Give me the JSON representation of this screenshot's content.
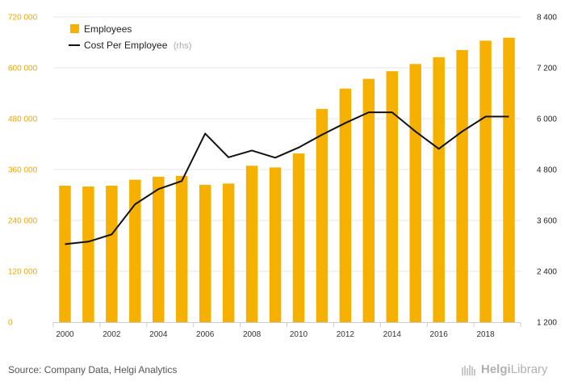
{
  "chart_data": {
    "type": "bar+line",
    "categories": [
      "2000",
      "2001",
      "2002",
      "2003",
      "2004",
      "2005",
      "2006",
      "2007",
      "2008",
      "2009",
      "2010",
      "2011",
      "2012",
      "2013",
      "2014",
      "2015",
      "2016",
      "2017",
      "2018",
      "2019"
    ],
    "x_tick_labels": [
      "2000",
      "2002",
      "2004",
      "2006",
      "2008",
      "2010",
      "2012",
      "2014",
      "2016",
      "2018"
    ],
    "series": [
      {
        "name": "Employees",
        "type": "bar",
        "axis": "left",
        "color": "#f5b000",
        "values": [
          322000,
          320000,
          322000,
          336000,
          343000,
          345000,
          324000,
          327000,
          369000,
          365000,
          398000,
          503000,
          551000,
          574000,
          592000,
          609000,
          625000,
          642000,
          664000,
          671000
        ]
      },
      {
        "name": "Cost Per Employee",
        "name_suffix": "(rhs)",
        "type": "line",
        "axis": "right",
        "color": "#111111",
        "values": [
          3040,
          3100,
          3270,
          3980,
          4340,
          4530,
          5650,
          5090,
          5250,
          5080,
          5320,
          5620,
          5900,
          6150,
          6150,
          5700,
          5290,
          5700,
          6050,
          6050
        ]
      }
    ],
    "y_left": {
      "min": 0,
      "max": 720000,
      "ticks": [
        "0",
        "120 000",
        "240 000",
        "360 000",
        "480 000",
        "600 000",
        "720 000"
      ],
      "tick_color": "#f0a500"
    },
    "y_right": {
      "min": 1200,
      "max": 8400,
      "ticks": [
        "1 200",
        "2 400",
        "3 600",
        "4 800",
        "6 000",
        "7 200",
        "8 400"
      ]
    },
    "grid": true,
    "legend_position": "top-left"
  },
  "footer": {
    "source": "Source: Company Data, Helgi Analytics",
    "brand_first": "Helgi",
    "brand_second": "Library"
  }
}
